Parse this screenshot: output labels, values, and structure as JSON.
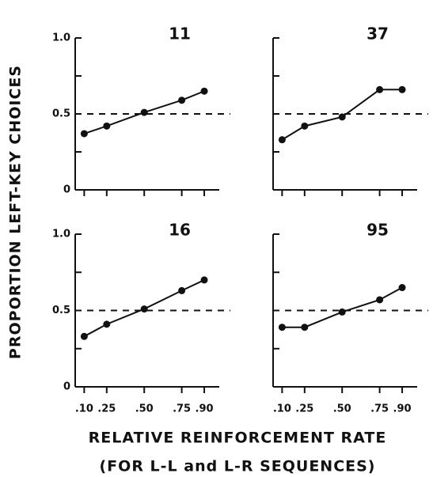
{
  "ylabel": "PROPORTION LEFT-KEY CHOICES",
  "xlabel": [
    "RELATIVE REINFORCEMENT RATE",
    "(FOR L-L and L-R SEQUENCES)"
  ],
  "chart_data": [
    {
      "type": "line",
      "title": "11",
      "color": "#111111",
      "x": [
        0.1,
        0.25,
        0.5,
        0.75,
        0.9
      ],
      "values": [
        0.37,
        0.42,
        0.51,
        0.59,
        0.65
      ],
      "xlim": [
        0.04,
        1.0
      ],
      "ylim": [
        0,
        1.0
      ],
      "xticks": [
        0.1,
        0.25,
        0.5,
        0.75,
        0.9
      ],
      "yticks": [
        0,
        0.5,
        {
          "value": 1,
          "label": "1.0"
        }
      ],
      "yminorticks": [
        0.25,
        0.75
      ],
      "reference_line": 0.5
    },
    {
      "type": "line",
      "title": "37",
      "color": "#111111",
      "x": [
        0.1,
        0.25,
        0.5,
        0.75,
        0.9
      ],
      "values": [
        0.33,
        0.42,
        0.48,
        0.66,
        0.66
      ],
      "xlim": [
        0.04,
        1.0
      ],
      "ylim": [
        0,
        1.0
      ],
      "xticks": [
        0.1,
        0.25,
        0.5,
        0.75,
        0.9
      ],
      "yminorticks": [
        0,
        0.25,
        0.5,
        0.75,
        1
      ],
      "reference_line": 0.5
    },
    {
      "type": "line",
      "title": "16",
      "color": "#111111",
      "x": [
        0.1,
        0.25,
        0.5,
        0.75,
        0.9
      ],
      "values": [
        0.33,
        0.41,
        0.51,
        0.63,
        0.7
      ],
      "xlim": [
        0.04,
        1.0
      ],
      "ylim": [
        0,
        1.0
      ],
      "xticks": [
        {
          "value": 0.1,
          "label": ".10"
        },
        {
          "value": 0.25,
          "label": ".25"
        },
        {
          "value": 0.5,
          "label": ".50"
        },
        {
          "value": 0.75,
          "label": ".75"
        },
        {
          "value": 0.9,
          "label": ".90"
        }
      ],
      "yticks": [
        0,
        0.5,
        {
          "value": 1,
          "label": "1.0"
        }
      ],
      "yminorticks": [
        0.25,
        0.75
      ],
      "reference_line": 0.5
    },
    {
      "type": "line",
      "title": "95",
      "color": "#111111",
      "x": [
        0.1,
        0.25,
        0.5,
        0.75,
        0.9
      ],
      "values": [
        0.39,
        0.39,
        0.49,
        0.57,
        0.65
      ],
      "xlim": [
        0.04,
        1.0
      ],
      "ylim": [
        0,
        1.0
      ],
      "xticks": [
        {
          "value": 0.1,
          "label": ".10"
        },
        {
          "value": 0.25,
          "label": ".25"
        },
        {
          "value": 0.5,
          "label": ".50"
        },
        {
          "value": 0.75,
          "label": ".75"
        },
        {
          "value": 0.9,
          "label": ".90"
        }
      ],
      "yminorticks": [
        0,
        0.25,
        0.5,
        0.75,
        1
      ],
      "reference_line": 0.5
    }
  ]
}
